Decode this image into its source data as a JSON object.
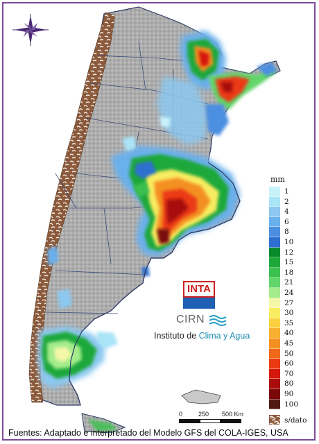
{
  "legend": {
    "unit": "mm",
    "classes": [
      {
        "label": "1",
        "color": "#c8f2fa"
      },
      {
        "label": "2",
        "color": "#a9e4f7"
      },
      {
        "label": "4",
        "color": "#8cc8f0"
      },
      {
        "label": "6",
        "color": "#6ab0ec"
      },
      {
        "label": "8",
        "color": "#4c8fe0"
      },
      {
        "label": "10",
        "color": "#2f6fd0"
      },
      {
        "label": "12",
        "color": "#0a8a2a"
      },
      {
        "label": "15",
        "color": "#1ea83a"
      },
      {
        "label": "18",
        "color": "#3cc050"
      },
      {
        "label": "21",
        "color": "#62d66a"
      },
      {
        "label": "24",
        "color": "#a4ec8c"
      },
      {
        "label": "27",
        "color": "#f5f7a8"
      },
      {
        "label": "30",
        "color": "#f8ec60"
      },
      {
        "label": "35",
        "color": "#fad040"
      },
      {
        "label": "40",
        "color": "#f8b030"
      },
      {
        "label": "45",
        "color": "#f49020"
      },
      {
        "label": "50",
        "color": "#f06818"
      },
      {
        "label": "60",
        "color": "#ea3a12"
      },
      {
        "label": "70",
        "color": "#d4180c"
      },
      {
        "label": "80",
        "color": "#a80c0c"
      },
      {
        "label": "90",
        "color": "#7a0808"
      },
      {
        "label": "100",
        "color": "#4e1a12"
      }
    ],
    "no_data_label": "s/dato",
    "no_data_color": "#8b5a3c"
  },
  "logo": {
    "inta_text": "INTA",
    "cirn_text": "CIRN",
    "institute_prefix": "Instituto de ",
    "institute_accent": "Clima y Agua"
  },
  "scale": {
    "ticks": [
      "0",
      "250",
      "500 Km"
    ]
  },
  "footer": {
    "source": "Fuentes: Adaptado e interpretado del Modelo GFS del COLA-IGES, USA"
  },
  "colors": {
    "frame": "#7a4a9c",
    "ocean": "#ffffff",
    "land_relief": "#b4b4b4",
    "no_data": "#8b5a3c"
  }
}
